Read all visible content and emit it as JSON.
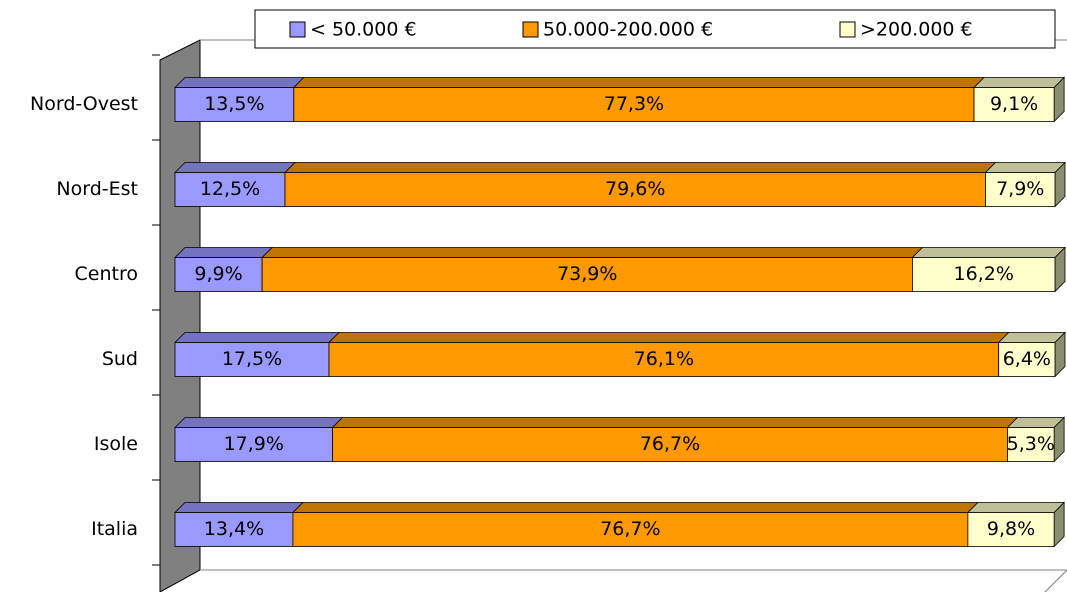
{
  "chart_data": {
    "type": "stacked-bar-horizontal",
    "categories": [
      "Nord-Ovest",
      "Nord-Est",
      "Centro",
      "Sud",
      "Isole",
      "Italia"
    ],
    "series": [
      {
        "name": "< 50.000 €",
        "color": "#9999ff",
        "values": [
          13.5,
          12.5,
          9.9,
          17.5,
          17.9,
          13.4
        ],
        "value_labels": [
          "13,5%",
          "12,5%",
          "9,9%",
          "17,5%",
          "17,9%",
          "13,4%"
        ]
      },
      {
        "name": "50.000-200.000 €",
        "color": "#ff9900",
        "values": [
          77.3,
          79.6,
          73.9,
          76.1,
          76.7,
          76.7
        ],
        "value_labels": [
          "77,3%",
          "79,6%",
          "73,9%",
          "76,1%",
          "76,7%",
          "76,7%"
        ]
      },
      {
        "name": ">200.000 €",
        "color": "#ffffcc",
        "values": [
          9.1,
          7.9,
          16.2,
          6.4,
          5.3,
          9.8
        ],
        "value_labels": [
          "9,1%",
          "7,9%",
          "16,2%",
          "6,4%",
          "5,3%",
          "9,8%"
        ]
      }
    ],
    "xlim": [
      0,
      100
    ],
    "legend": "top"
  }
}
